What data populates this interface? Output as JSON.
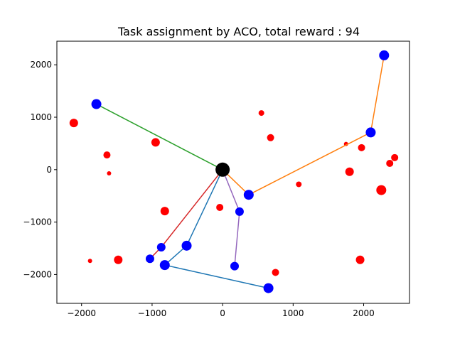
{
  "chart_data": {
    "type": "scatter",
    "title": "Task assignment by ACO, total reward : 94",
    "xlabel": "",
    "ylabel": "",
    "xlim": [
      -2350,
      2650
    ],
    "ylim": [
      -2550,
      2450
    ],
    "x_ticks": [
      -2000,
      -1000,
      0,
      1000,
      2000
    ],
    "x_tick_labels": [
      "−2000",
      "−1000",
      "0",
      "1000",
      "2000"
    ],
    "y_ticks": [
      -2000,
      -1000,
      0,
      1000,
      2000
    ],
    "y_tick_labels": [
      "−2000",
      "−1000",
      "0",
      "1000",
      "2000"
    ],
    "grid": false,
    "depot": {
      "x": 0,
      "y": 0,
      "color": "#000000",
      "size": 10
    },
    "tasks_unassigned": [
      {
        "x": -2110,
        "y": 890,
        "size": 6
      },
      {
        "x": -1640,
        "y": 280,
        "size": 5
      },
      {
        "x": -1610,
        "y": -70,
        "size": 3
      },
      {
        "x": -950,
        "y": 520,
        "size": 6
      },
      {
        "x": -820,
        "y": -790,
        "size": 6
      },
      {
        "x": -1480,
        "y": -1720,
        "size": 6
      },
      {
        "x": -1880,
        "y": -1740,
        "size": 3
      },
      {
        "x": -40,
        "y": -720,
        "size": 5
      },
      {
        "x": 550,
        "y": 1080,
        "size": 4
      },
      {
        "x": 680,
        "y": 610,
        "size": 5
      },
      {
        "x": 1080,
        "y": -280,
        "size": 4
      },
      {
        "x": 1750,
        "y": 490,
        "size": 3
      },
      {
        "x": 1800,
        "y": -40,
        "size": 6
      },
      {
        "x": 1970,
        "y": 420,
        "size": 5
      },
      {
        "x": 2250,
        "y": -390,
        "size": 7
      },
      {
        "x": 2370,
        "y": 120,
        "size": 5
      },
      {
        "x": 2440,
        "y": 230,
        "size": 5
      },
      {
        "x": 750,
        "y": -1960,
        "size": 5
      },
      {
        "x": 1950,
        "y": -1720,
        "size": 6
      }
    ],
    "task_color": "#ff0000",
    "assigned_color": "#0000ff",
    "series": [
      {
        "color": "#1f77b4",
        "points": [
          [
            0,
            0
          ],
          [
            -510,
            -1450
          ],
          [
            -820,
            -1820
          ],
          [
            650,
            -2260
          ]
        ],
        "sizes": [
          7,
          7,
          7
        ]
      },
      {
        "color": "#ff7f0e",
        "points": [
          [
            0,
            0
          ],
          [
            370,
            -480
          ],
          [
            2100,
            710
          ],
          [
            2290,
            2180
          ]
        ],
        "sizes": [
          7,
          7,
          7
        ]
      },
      {
        "color": "#2ca02c",
        "points": [
          [
            0,
            0
          ],
          [
            -1790,
            1250
          ]
        ],
        "sizes": [
          7
        ]
      },
      {
        "color": "#d62728",
        "points": [
          [
            0,
            0
          ],
          [
            -870,
            -1480
          ],
          [
            -1030,
            -1700
          ]
        ],
        "sizes": [
          6,
          6
        ]
      },
      {
        "color": "#9467bd",
        "points": [
          [
            0,
            0
          ],
          [
            240,
            -800
          ],
          [
            170,
            -1840
          ]
        ],
        "sizes": [
          6,
          6
        ]
      }
    ]
  }
}
